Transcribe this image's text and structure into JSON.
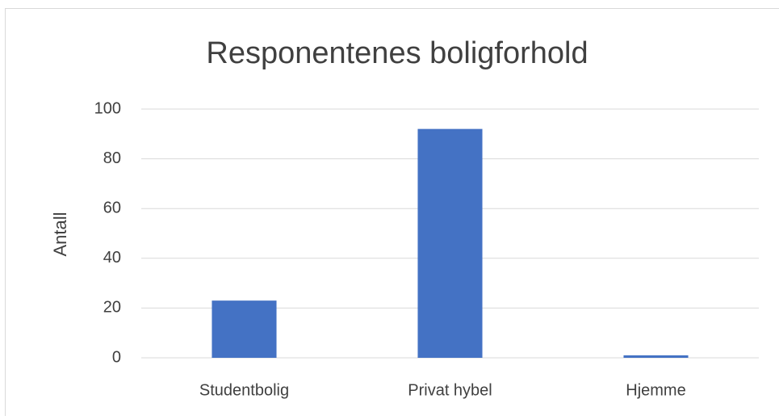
{
  "chart_data": {
    "type": "bar",
    "title": "Responentenes boligforhold",
    "y_label": "Antall",
    "categories": [
      "Studentbolig",
      "Privat hybel",
      "Hjemme"
    ],
    "values": [
      23,
      92,
      1
    ],
    "color": "#4472c4",
    "ylim": [
      0,
      100
    ],
    "yticks": [
      0,
      20,
      40,
      60,
      80,
      100
    ],
    "grid": true
  }
}
